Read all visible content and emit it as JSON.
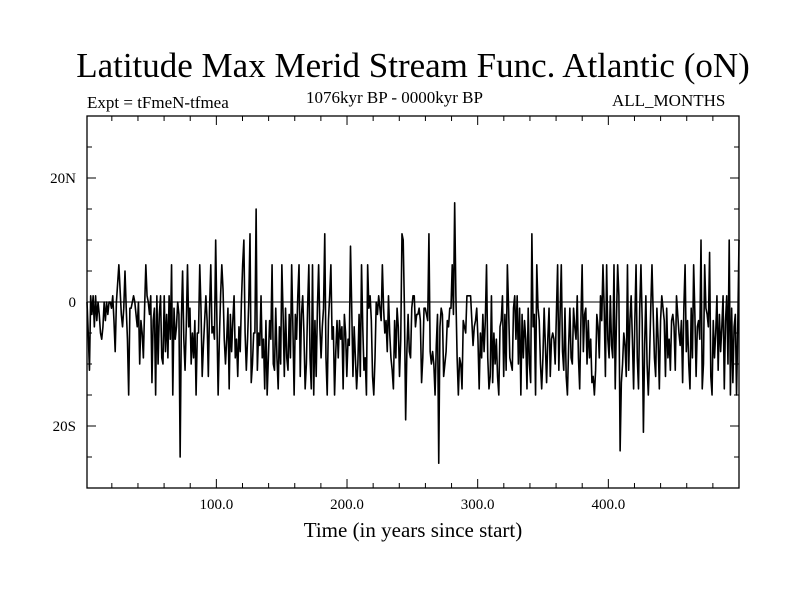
{
  "chart_data": {
    "type": "line",
    "title": "Latitude Max Merid Stream Func. Atlantic (oN)",
    "experiment": "Expt = tFmeN-tfmea",
    "subtitle": "1076kyr BP - 0000kyr BP",
    "season": "ALL_MONTHS",
    "xlabel": "Time (in years since start)",
    "ylabel": "",
    "xlim": [
      1,
      500
    ],
    "ylim": [
      -30,
      30
    ],
    "xticks": [
      {
        "value": 100,
        "label": "100.0"
      },
      {
        "value": 200,
        "label": "200.0"
      },
      {
        "value": 300,
        "label": "300.0"
      },
      {
        "value": 400,
        "label": "400.0"
      }
    ],
    "yticks": [
      {
        "value": 20,
        "label": "20N"
      },
      {
        "value": 0,
        "label": "0"
      },
      {
        "value": -20,
        "label": "20S"
      }
    ],
    "x_minor_step": 20,
    "y_minor_step": 5,
    "zero_line": true,
    "series": [
      {
        "values": [
          0,
          -5,
          -11,
          1,
          -2,
          1,
          -4,
          1,
          -3,
          0,
          -2,
          -5,
          -6,
          -4,
          0,
          -3,
          0,
          -2,
          0,
          0,
          -1,
          1,
          -3,
          -8,
          0,
          3,
          6,
          2,
          -2,
          -4,
          -1,
          5,
          -1,
          -6,
          -15,
          -1,
          -1,
          0,
          1,
          0,
          -2,
          -4,
          0,
          -10,
          -3,
          -5,
          -9,
          -1,
          6,
          1,
          0,
          -2,
          1,
          -13,
          -3,
          -1,
          -15,
          1,
          -10,
          -2,
          1,
          -9,
          -10,
          1,
          -8,
          -2,
          -9,
          1,
          -6,
          6,
          -15,
          -1,
          -6,
          -4,
          0,
          -2,
          -25,
          -3,
          5,
          -6,
          -11,
          -4,
          6,
          -4,
          -1,
          -10,
          -5,
          -9,
          -3,
          -15,
          -5,
          -5,
          6,
          -1,
          -12,
          -7,
          -3,
          1,
          -3,
          -12,
          -1,
          6,
          -5,
          -4,
          -6,
          10,
          -3,
          -15,
          -6,
          1,
          6,
          2,
          -6,
          -10,
          -6,
          -1,
          -14,
          -2,
          -8,
          -3,
          1,
          -9,
          -6,
          -12,
          -4,
          -8,
          0,
          6,
          10,
          -5,
          -11,
          -6,
          0,
          11,
          -13,
          -10,
          -5,
          -5,
          15,
          -11,
          -5,
          -7,
          1,
          -9,
          -6,
          -14,
          -3,
          -15,
          -9,
          -3,
          -6,
          6,
          -10,
          -11,
          -1,
          -9,
          -14,
          -4,
          -10,
          6,
          -2,
          -12,
          -1,
          -9,
          -11,
          -2,
          -9,
          6,
          -4,
          -15,
          -2,
          -6,
          1,
          6,
          -12,
          -2,
          1,
          -5,
          -14,
          -10,
          -1,
          6,
          -9,
          -14,
          6,
          -15,
          -3,
          -12,
          -1,
          6,
          -4,
          -9,
          -4,
          -1,
          11,
          -9,
          -15,
          -3,
          1,
          6,
          -6,
          -4,
          -15,
          -8,
          -3,
          -9,
          -3,
          -6,
          -4,
          -14,
          -2,
          -5,
          -12,
          -6,
          -7,
          9,
          -1,
          -12,
          -4,
          -9,
          -14,
          -10,
          -2,
          -12,
          6,
          -4,
          -11,
          -9,
          -15,
          6,
          -1,
          1,
          -3,
          -12,
          -15,
          -9,
          0,
          -2,
          1,
          -1,
          -3,
          6,
          -1,
          -5,
          -3,
          -8,
          1,
          -5,
          -9,
          -11,
          -14,
          -3,
          -9,
          -1,
          -4,
          -12,
          -6,
          11,
          10,
          -1,
          -19,
          -8,
          -2,
          -8,
          -9,
          -1,
          1,
          1,
          -4,
          -2,
          -2,
          -1,
          -3,
          -13,
          -9,
          -1,
          -1,
          -2,
          -3,
          11,
          -8,
          -10,
          -8,
          -10,
          -15,
          -7,
          -2,
          -26,
          -4,
          -1,
          -2,
          -12,
          -10,
          -8,
          -3,
          -4,
          -1,
          -1,
          6,
          -2,
          16,
          1,
          -9,
          -15,
          -9,
          -10,
          -14,
          -3,
          -4,
          -5,
          1,
          1,
          1,
          1,
          -3,
          -7,
          -4,
          -3,
          -1,
          -6,
          -14,
          -5,
          -9,
          -2,
          -8,
          -3,
          6,
          -9,
          -14,
          -12,
          1,
          -13,
          -5,
          -10,
          -6,
          -12,
          -15,
          -4,
          -3,
          1,
          -12,
          -2,
          -11,
          6,
          -1,
          -9,
          -10,
          -11,
          -1,
          1,
          -6,
          1,
          -10,
          -1,
          -15,
          -2,
          -9,
          -3,
          -6,
          -14,
          -1,
          -10,
          -13,
          11,
          -4,
          -2,
          -15,
          6,
          -1,
          -3,
          -10,
          -14,
          -9,
          -1,
          -7,
          -13,
          -6,
          -1,
          -12,
          -6,
          -5,
          -6,
          -10,
          -2,
          6,
          -11,
          -2,
          6,
          -8,
          -11,
          -1,
          -12,
          -15,
          -7,
          -1,
          -9,
          -10,
          -1,
          -4,
          -6,
          1,
          -9,
          -14,
          -3,
          6,
          -8,
          -2,
          -1,
          -10,
          -3,
          -9,
          -6,
          -13,
          -12,
          -15,
          -11,
          -2,
          -4,
          -9,
          1,
          -3,
          6,
          -1,
          -12,
          6,
          -6,
          -9,
          1,
          -7,
          -9,
          6,
          -14,
          -3,
          6,
          1,
          -24,
          -13,
          -10,
          -5,
          -7,
          -12,
          6,
          -11,
          -3,
          1,
          -6,
          -14,
          -3,
          6,
          -9,
          -14,
          -1,
          6,
          -3,
          -21,
          -7,
          1,
          -10,
          -15,
          -9,
          -1,
          6,
          -2,
          -9,
          -12,
          -1,
          -6,
          -14,
          -3,
          1,
          -1,
          -3,
          -12,
          -1,
          -9,
          -6,
          -11,
          -3,
          -2,
          -4,
          -11,
          1,
          -2,
          -5,
          -7,
          -3,
          -13,
          -1,
          6,
          -8,
          -3,
          -10,
          -14,
          -1,
          -9,
          6,
          -2,
          -12,
          -4,
          -3,
          -6,
          10,
          -14,
          -10,
          6,
          -1,
          -2,
          -4,
          8,
          -12,
          -15,
          -3,
          -9,
          -5,
          1,
          -11,
          -2,
          -8,
          -4,
          1,
          -14,
          -3,
          1,
          -10,
          10,
          -15,
          -1,
          -13,
          -4,
          -2,
          -15,
          -4,
          10
        ]
      }
    ]
  }
}
